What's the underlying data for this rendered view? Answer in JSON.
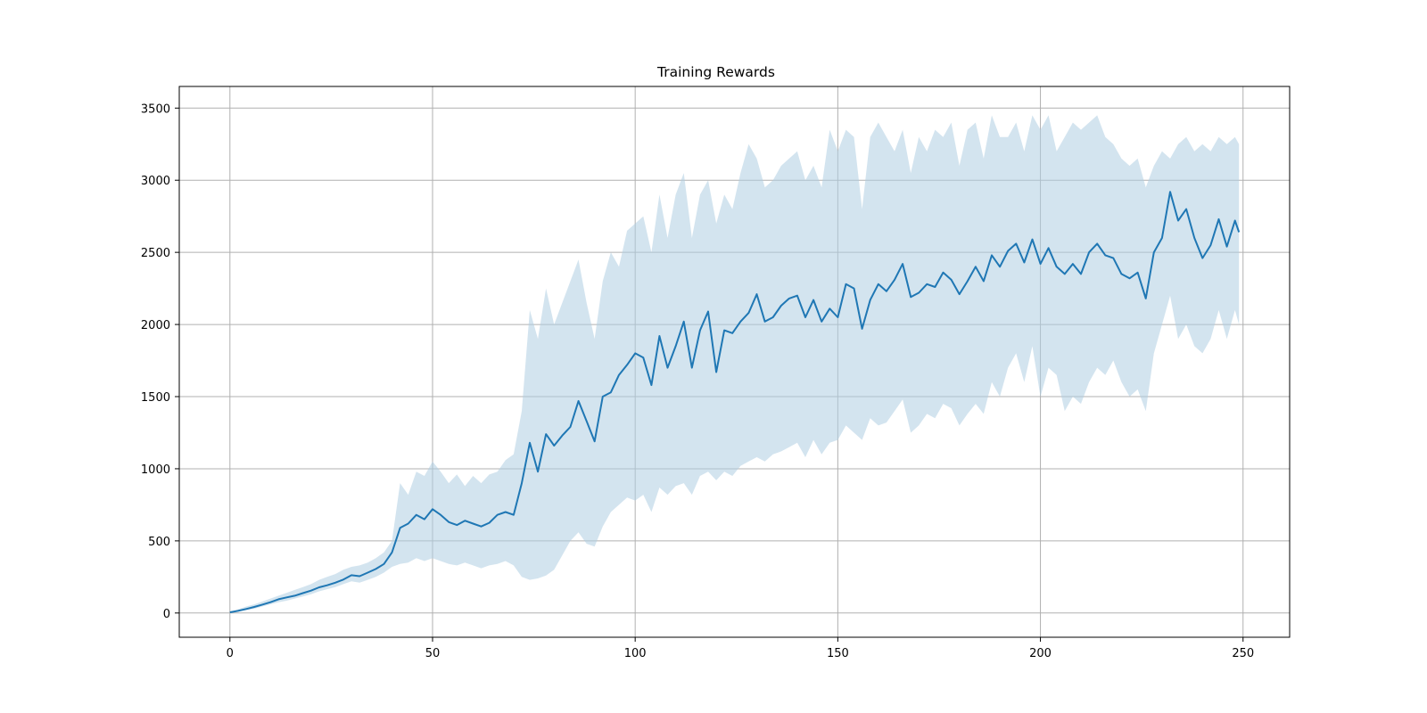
{
  "chart_data": {
    "type": "line",
    "title": "Training Rewards",
    "xlabel": "",
    "ylabel": "",
    "xlim": [
      -12.5,
      261.5
    ],
    "ylim": [
      -168,
      3650
    ],
    "xticks": [
      0,
      50,
      100,
      150,
      200,
      250
    ],
    "yticks": [
      0,
      500,
      1000,
      1500,
      2000,
      2500,
      3000,
      3500
    ],
    "grid": true,
    "legend": "none",
    "colors": {
      "line": "#1f77b4",
      "band": "#aecde2"
    },
    "series": [
      {
        "x": [
          0,
          2,
          4,
          6,
          8,
          10,
          12,
          14,
          16,
          18,
          20,
          22,
          24,
          26,
          28,
          30,
          32,
          34,
          36,
          38,
          40,
          42,
          44,
          46,
          48,
          50,
          52,
          54,
          56,
          58,
          60,
          62,
          64,
          66,
          68,
          70,
          72,
          74,
          76,
          78,
          80,
          82,
          84,
          86,
          88,
          90,
          92,
          94,
          96,
          98,
          100,
          102,
          104,
          106,
          108,
          110,
          112,
          114,
          116,
          118,
          120,
          122,
          124,
          126,
          128,
          130,
          132,
          134,
          136,
          138,
          140,
          142,
          144,
          146,
          148,
          150,
          152,
          154,
          156,
          158,
          160,
          162,
          164,
          166,
          168,
          170,
          172,
          174,
          176,
          178,
          180,
          182,
          184,
          186,
          188,
          190,
          192,
          194,
          196,
          198,
          200,
          202,
          204,
          206,
          208,
          210,
          212,
          214,
          216,
          218,
          220,
          222,
          224,
          226,
          228,
          230,
          232,
          234,
          236,
          238,
          240,
          242,
          244,
          246,
          248,
          249
        ],
        "y": [
          5,
          15,
          28,
          42,
          58,
          75,
          95,
          108,
          120,
          138,
          155,
          178,
          192,
          210,
          232,
          262,
          255,
          280,
          305,
          340,
          420,
          590,
          620,
          680,
          650,
          720,
          680,
          630,
          610,
          640,
          620,
          600,
          625,
          680,
          700,
          680,
          900,
          1180,
          980,
          1240,
          1160,
          1230,
          1290,
          1470,
          1330,
          1190,
          1500,
          1530,
          1650,
          1720,
          1800,
          1770,
          1580,
          1920,
          1700,
          1850,
          2020,
          1700,
          1960,
          2090,
          1670,
          1960,
          1940,
          2020,
          2080,
          2210,
          2020,
          2050,
          2130,
          2180,
          2200,
          2050,
          2170,
          2020,
          2110,
          2050,
          2280,
          2250,
          1970,
          2170,
          2280,
          2230,
          2310,
          2420,
          2190,
          2220,
          2280,
          2260,
          2360,
          2310,
          2210,
          2300,
          2400,
          2300,
          2480,
          2400,
          2510,
          2560,
          2430,
          2590,
          2420,
          2530,
          2400,
          2350,
          2420,
          2350,
          2500,
          2560,
          2480,
          2460,
          2350,
          2320,
          2360,
          2180,
          2500,
          2600,
          2920,
          2720,
          2800,
          2600,
          2460,
          2550,
          2730,
          2540,
          2720,
          2640
        ],
        "upper": [
          5,
          25,
          45,
          60,
          80,
          100,
          120,
          140,
          160,
          180,
          200,
          230,
          250,
          270,
          300,
          320,
          330,
          350,
          380,
          420,
          500,
          900,
          820,
          980,
          950,
          1050,
          980,
          900,
          960,
          880,
          950,
          900,
          960,
          980,
          1060,
          1100,
          1400,
          2100,
          1900,
          2250,
          2000,
          2150,
          2300,
          2450,
          2150,
          1900,
          2300,
          2500,
          2400,
          2650,
          2700,
          2750,
          2500,
          2900,
          2600,
          2900,
          3050,
          2600,
          2900,
          3000,
          2700,
          2900,
          2800,
          3050,
          3250,
          3150,
          2950,
          3000,
          3100,
          3150,
          3200,
          3000,
          3100,
          2950,
          3350,
          3200,
          3350,
          3300,
          2800,
          3300,
          3400,
          3300,
          3200,
          3350,
          3050,
          3300,
          3200,
          3350,
          3300,
          3400,
          3100,
          3350,
          3400,
          3150,
          3450,
          3300,
          3300,
          3400,
          3200,
          3450,
          3350,
          3450,
          3200,
          3300,
          3400,
          3350,
          3400,
          3450,
          3300,
          3250,
          3150,
          3100,
          3150,
          2950,
          3100,
          3200,
          3150,
          3250,
          3300,
          3200,
          3250,
          3200,
          3300,
          3250,
          3300,
          3250
        ],
        "lower": [
          5,
          10,
          20,
          30,
          45,
          60,
          75,
          85,
          100,
          115,
          130,
          150,
          165,
          180,
          200,
          220,
          210,
          230,
          250,
          280,
          320,
          340,
          350,
          380,
          360,
          380,
          360,
          340,
          330,
          350,
          330,
          310,
          330,
          340,
          360,
          330,
          250,
          230,
          240,
          260,
          300,
          400,
          500,
          560,
          480,
          460,
          600,
          700,
          750,
          800,
          780,
          820,
          700,
          870,
          820,
          880,
          900,
          820,
          950,
          980,
          920,
          980,
          950,
          1020,
          1050,
          1080,
          1050,
          1100,
          1120,
          1150,
          1180,
          1080,
          1200,
          1100,
          1180,
          1200,
          1300,
          1250,
          1200,
          1350,
          1300,
          1320,
          1400,
          1480,
          1250,
          1300,
          1380,
          1350,
          1450,
          1420,
          1300,
          1380,
          1450,
          1380,
          1600,
          1500,
          1700,
          1800,
          1600,
          1850,
          1500,
          1700,
          1650,
          1400,
          1500,
          1450,
          1600,
          1700,
          1650,
          1750,
          1600,
          1500,
          1550,
          1400,
          1800,
          2000,
          2200,
          1900,
          2000,
          1850,
          1800,
          1900,
          2100,
          1900,
          2100,
          2000
        ]
      }
    ]
  }
}
